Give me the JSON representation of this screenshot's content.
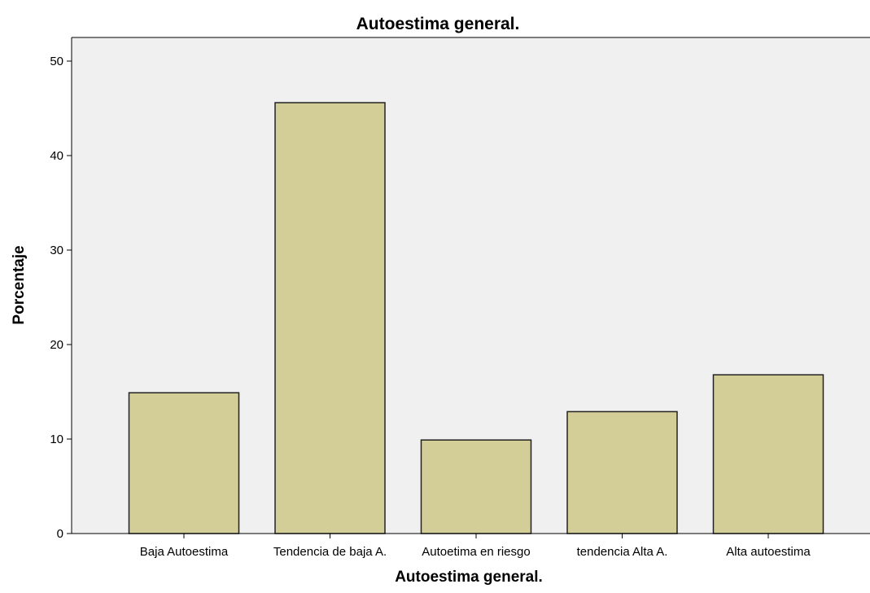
{
  "chart_data": {
    "type": "bar",
    "title": "Autoestima general.",
    "xlabel": "Autoestima general.",
    "ylabel": "Porcentaje",
    "categories": [
      "Baja Autoestima",
      "Tendencia de baja A.",
      "Autoetima en riesgo",
      "tendencia Alta A.",
      "Alta autoestima"
    ],
    "values": [
      14.9,
      45.6,
      9.9,
      12.9,
      16.8
    ],
    "ylim": [
      0,
      52.5
    ],
    "yticks": [
      0,
      10,
      20,
      30,
      40,
      50
    ],
    "grid": false,
    "legend": "none",
    "colors": {
      "plot_background": "#f0f0f0",
      "bar_fill": "#d3ce97",
      "bar_stroke": "#222222",
      "axis": "#000000"
    }
  }
}
